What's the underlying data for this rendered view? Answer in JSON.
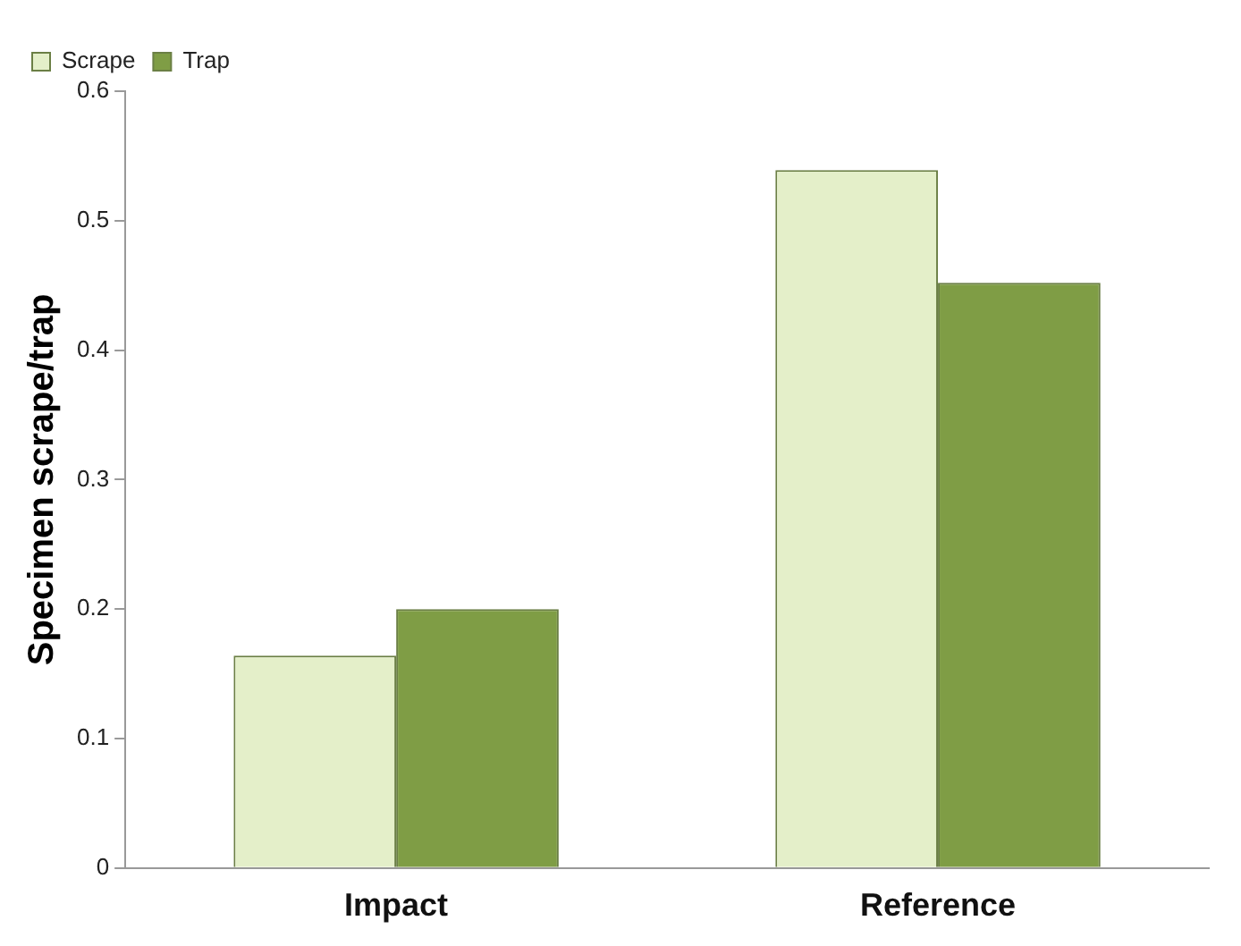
{
  "chart_data": {
    "type": "bar",
    "ylabel": "Specimen scrape/trap",
    "categories": [
      "Impact",
      "Reference"
    ],
    "series": [
      {
        "name": "Scrape",
        "color": "#e4efc9",
        "values": [
          0.164,
          0.539
        ]
      },
      {
        "name": "Trap",
        "color": "#7f9d45",
        "values": [
          0.2,
          0.452
        ]
      }
    ],
    "ylim": [
      0,
      0.6
    ],
    "yticks": [
      0,
      0.1,
      0.2,
      0.3,
      0.4,
      0.5,
      0.6
    ],
    "grid": false,
    "legend": "top left"
  }
}
